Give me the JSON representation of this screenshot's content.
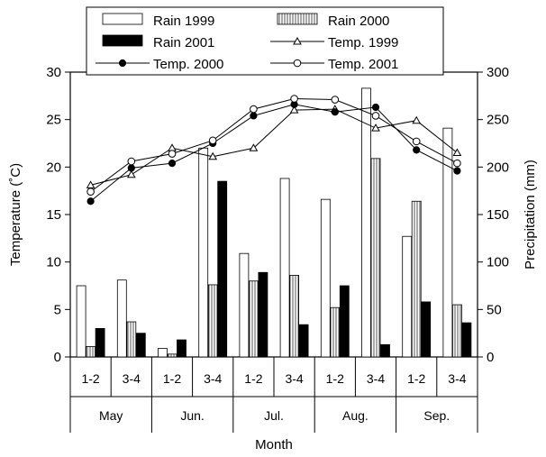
{
  "chart_data": {
    "type": "bar",
    "combo": "bar+line",
    "xlabel": "Month",
    "ylabel_left": "Temperature (˚C)",
    "ylabel_right": "Precipitation (mm)",
    "ylim_left": [
      0,
      30
    ],
    "ylim_right": [
      0,
      300
    ],
    "yticks_left": [
      "0",
      "5",
      "10",
      "15",
      "20",
      "25",
      "30"
    ],
    "yticks_right": [
      "0",
      "50",
      "100",
      "150",
      "200",
      "250",
      "300"
    ],
    "months": [
      "May",
      "Jun.",
      "Jul.",
      "Aug.",
      "Sep."
    ],
    "categories": [
      "1-2",
      "3-4",
      "1-2",
      "3-4",
      "1-2",
      "3-4",
      "1-2",
      "3-4",
      "1-2",
      "3-4"
    ],
    "grid": false,
    "legend_position": "top-center",
    "bar_series": [
      {
        "name": "Rain 1999",
        "axis": "right",
        "style": "open",
        "values": [
          75,
          81,
          9,
          220,
          109,
          188,
          166,
          283,
          127,
          241
        ]
      },
      {
        "name": "Rain 2000",
        "axis": "right",
        "style": "hatched",
        "values": [
          11,
          37,
          3,
          76,
          80,
          86,
          52,
          209,
          164,
          55
        ]
      },
      {
        "name": "Rain 2001",
        "axis": "right",
        "style": "solid",
        "values": [
          30,
          25,
          18,
          185,
          89,
          34,
          75,
          13,
          58,
          36
        ]
      }
    ],
    "line_series": [
      {
        "name": "Temp. 1999",
        "axis": "left",
        "marker": "triangle-open",
        "values": [
          18.1,
          19.2,
          22.0,
          21.1,
          22.0,
          26.0,
          26.1,
          24.1,
          24.9,
          21.5
        ]
      },
      {
        "name": "Temp. 2000",
        "axis": "left",
        "marker": "circle-filled",
        "values": [
          16.4,
          19.9,
          20.4,
          22.5,
          25.4,
          26.6,
          25.8,
          26.3,
          21.8,
          19.6
        ]
      },
      {
        "name": "Temp. 2001",
        "axis": "left",
        "marker": "circle-open",
        "values": [
          17.4,
          20.6,
          21.4,
          22.8,
          26.1,
          27.2,
          27.1,
          25.4,
          22.7,
          20.4
        ]
      }
    ]
  }
}
